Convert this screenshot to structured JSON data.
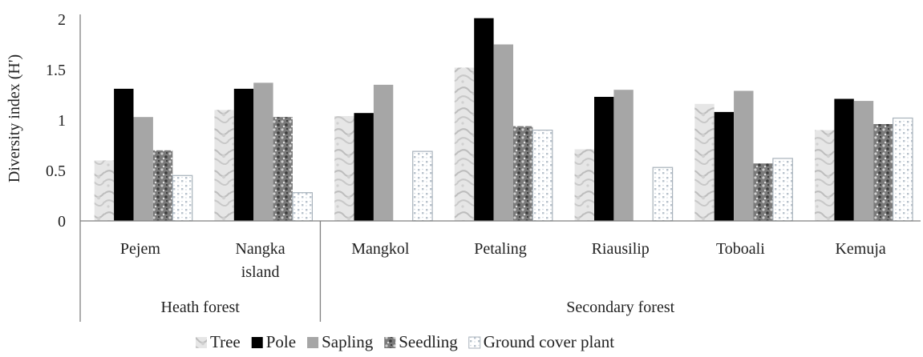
{
  "chart_data": {
    "type": "bar",
    "ylabel": "Diversity index (H')",
    "ylim": [
      0,
      2
    ],
    "yticks": [
      "0",
      "0.5",
      "1",
      "1.5",
      "2"
    ],
    "ytick_values": [
      0,
      0.5,
      1,
      1.5,
      2
    ],
    "categories": [
      [
        "Pejem"
      ],
      [
        "Nangka",
        "island"
      ],
      [
        "Mangkol"
      ],
      [
        "Petaling"
      ],
      [
        "Riausilip"
      ],
      [
        "Toboali"
      ],
      [
        "Kemuja"
      ]
    ],
    "groups": [
      {
        "label": "Heath forest",
        "count": 2
      },
      {
        "label": "Secondary forest",
        "count": 5
      }
    ],
    "series": [
      {
        "name": "Tree",
        "pattern": "tree",
        "values": [
          0.6,
          1.1,
          1.04,
          1.52,
          0.71,
          1.16,
          0.9
        ]
      },
      {
        "name": "Pole",
        "pattern": "pole",
        "values": [
          1.31,
          1.31,
          1.07,
          2.01,
          1.23,
          1.08,
          1.21
        ]
      },
      {
        "name": "Sapling",
        "pattern": "sapling",
        "values": [
          1.03,
          1.37,
          1.35,
          1.75,
          1.3,
          1.29,
          1.19
        ]
      },
      {
        "name": "Seedling",
        "pattern": "seedling",
        "values": [
          0.7,
          1.03,
          0,
          0.94,
          0,
          0.57,
          0.96
        ]
      },
      {
        "name": "Ground cover plant",
        "pattern": "ground",
        "values": [
          0.45,
          0.28,
          0.69,
          0.9,
          0.53,
          0.62,
          1.02
        ]
      }
    ],
    "legend_position": "bottom",
    "grid": false,
    "colors": {
      "tree": "#d9d9d9",
      "pole": "#000000",
      "sapling": "#a6a6a6",
      "seedling": "#5a5a5a",
      "ground": "#b8c2cc",
      "axis": "#808080"
    }
  }
}
